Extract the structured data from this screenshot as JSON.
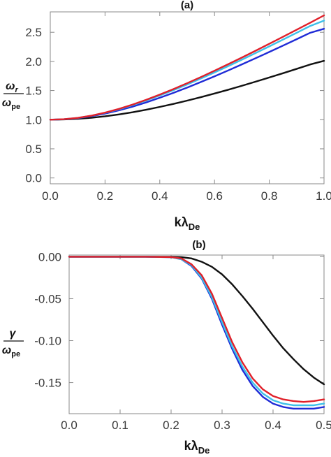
{
  "chart_data": [
    {
      "type": "line",
      "title": "(a)",
      "xlabel": {
        "main": "kλ",
        "sub": "De"
      },
      "ylabel": {
        "num_main": "ω",
        "num_sub": "r",
        "den_main": "ω",
        "den_sub": "pe"
      },
      "xlim": [
        0.0,
        1.0
      ],
      "ylim": [
        -0.1,
        2.85
      ],
      "xticks": [
        "0.0",
        "0.2",
        "0.4",
        "0.6",
        "0.8",
        "1.0"
      ],
      "yticks": [
        "0.0",
        "0.5",
        "1.0",
        "1.5",
        "2.0",
        "2.5"
      ],
      "grid": false,
      "x": [
        0.0,
        0.05,
        0.1,
        0.15,
        0.2,
        0.25,
        0.3,
        0.35,
        0.4,
        0.45,
        0.5,
        0.55,
        0.6,
        0.65,
        0.7,
        0.75,
        0.8,
        0.85,
        0.9,
        0.95,
        1.0
      ],
      "series": [
        {
          "color": "#111111",
          "values": [
            1.0,
            1.004,
            1.015,
            1.033,
            1.058,
            1.09,
            1.127,
            1.171,
            1.219,
            1.271,
            1.327,
            1.386,
            1.449,
            1.514,
            1.582,
            1.652,
            1.724,
            1.797,
            1.872,
            1.948,
            2.01
          ]
        },
        {
          "color": "#1f2bd6",
          "values": [
            1.0,
            1.007,
            1.027,
            1.059,
            1.104,
            1.159,
            1.223,
            1.296,
            1.376,
            1.461,
            1.551,
            1.646,
            1.744,
            1.845,
            1.949,
            2.055,
            2.162,
            2.271,
            2.381,
            2.492,
            2.56
          ]
        },
        {
          "color": "#3ec0e8",
          "values": [
            1.0,
            1.008,
            1.03,
            1.067,
            1.117,
            1.178,
            1.249,
            1.329,
            1.415,
            1.507,
            1.604,
            1.706,
            1.811,
            1.919,
            2.03,
            2.143,
            2.258,
            2.374,
            2.491,
            2.609,
            2.7
          ]
        },
        {
          "color": "#e0202a",
          "values": [
            1.0,
            1.008,
            1.031,
            1.069,
            1.121,
            1.184,
            1.258,
            1.34,
            1.43,
            1.525,
            1.626,
            1.731,
            1.84,
            1.952,
            2.066,
            2.183,
            2.302,
            2.422,
            2.543,
            2.665,
            2.79
          ]
        }
      ]
    },
    {
      "type": "line",
      "title": "(b)",
      "xlabel": {
        "main": "kλ",
        "sub": "De"
      },
      "ylabel": {
        "num_main": "γ",
        "num_sub": "",
        "den_main": "ω",
        "den_sub": "pe"
      },
      "xlim": [
        0.0,
        0.5
      ],
      "ylim": [
        -0.187,
        0.002
      ],
      "xticks": [
        "0.0",
        "0.1",
        "0.2",
        "0.3",
        "0.4",
        "0.5"
      ],
      "yticks": [
        "0.00",
        "-0.05",
        "-0.10",
        "-0.15"
      ],
      "grid": false,
      "x": [
        0.0,
        0.05,
        0.1,
        0.15,
        0.2,
        0.22,
        0.24,
        0.26,
        0.28,
        0.3,
        0.32,
        0.34,
        0.36,
        0.38,
        0.4,
        0.42,
        0.44,
        0.46,
        0.48,
        0.5
      ],
      "series": [
        {
          "color": "#111111",
          "values": [
            0.0,
            0.0,
            0.0,
            0.0,
            0.0,
            -0.0005,
            -0.002,
            -0.006,
            -0.012,
            -0.021,
            -0.033,
            -0.047,
            -0.062,
            -0.078,
            -0.094,
            -0.109,
            -0.122,
            -0.134,
            -0.144,
            -0.152
          ]
        },
        {
          "color": "#1f2bd6",
          "values": [
            0.0,
            0.0,
            0.0,
            0.0,
            -0.0005,
            -0.003,
            -0.011,
            -0.026,
            -0.05,
            -0.081,
            -0.11,
            -0.135,
            -0.154,
            -0.167,
            -0.175,
            -0.179,
            -0.181,
            -0.181,
            -0.181,
            -0.179
          ]
        },
        {
          "color": "#3ec0e8",
          "values": [
            0.0,
            0.0,
            0.0,
            0.0,
            -0.0005,
            -0.003,
            -0.01,
            -0.025,
            -0.048,
            -0.078,
            -0.107,
            -0.131,
            -0.15,
            -0.163,
            -0.171,
            -0.175,
            -0.177,
            -0.177,
            -0.177,
            -0.175
          ]
        },
        {
          "color": "#e0202a",
          "values": [
            0.0,
            0.0,
            0.0,
            0.0,
            -0.0004,
            -0.002,
            -0.009,
            -0.022,
            -0.044,
            -0.073,
            -0.102,
            -0.126,
            -0.145,
            -0.158,
            -0.166,
            -0.17,
            -0.172,
            -0.173,
            -0.172,
            -0.17
          ]
        }
      ]
    }
  ]
}
